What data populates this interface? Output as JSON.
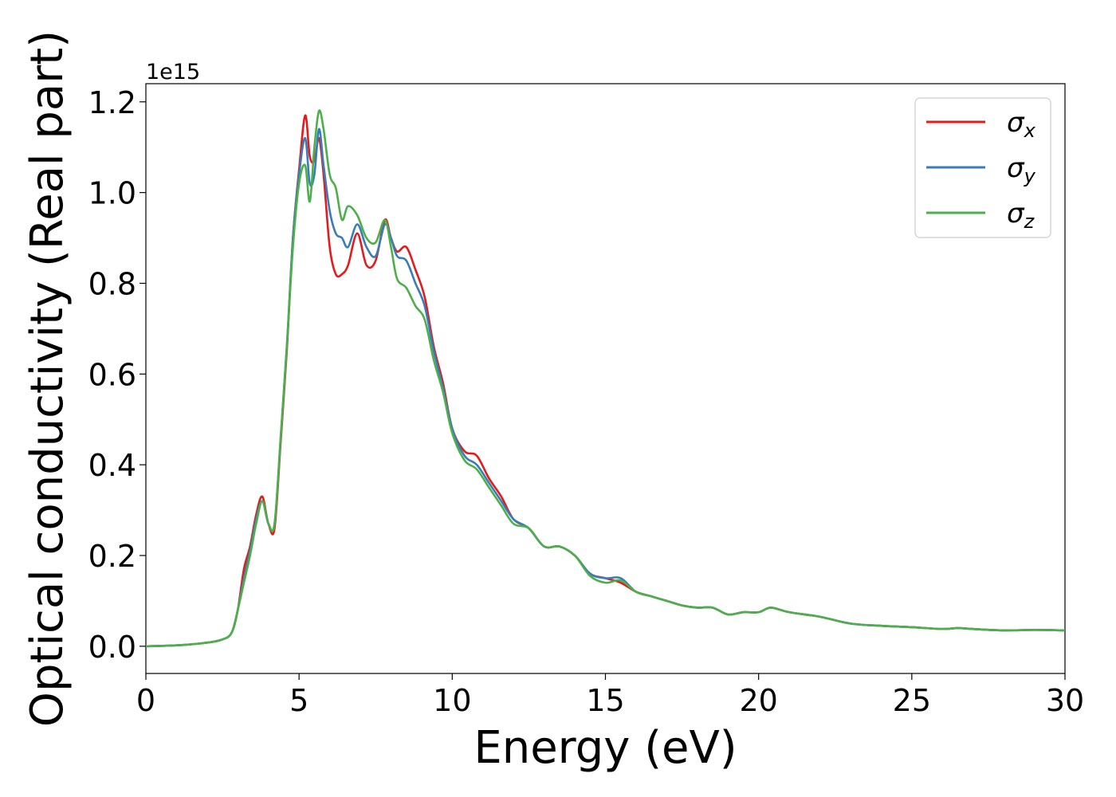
{
  "chart_data": {
    "type": "line",
    "title": "",
    "xlabel": "Energy (eV)",
    "ylabel": "Optical conductivity (Real part)",
    "y_offset_text": "1e15",
    "xlim": [
      0,
      30
    ],
    "ylim": [
      -0.06,
      1.24
    ],
    "y_scale": 1000000000000000.0,
    "xticks": [
      0,
      5,
      10,
      15,
      20,
      25,
      30
    ],
    "xtick_labels": [
      "0",
      "5",
      "10",
      "15",
      "20",
      "25",
      "30"
    ],
    "yticks": [
      0.0,
      0.2,
      0.4,
      0.6,
      0.8,
      1.0,
      1.2
    ],
    "ytick_labels": [
      "0.0",
      "0.2",
      "0.4",
      "0.6",
      "0.8",
      "1.0",
      "1.2"
    ],
    "grid": false,
    "legend_position": "top-right",
    "legend": [
      {
        "symbol": "σ",
        "subscript": "x",
        "color": "#e41a1c"
      },
      {
        "symbol": "σ",
        "subscript": "y",
        "color": "#377eb8"
      },
      {
        "symbol": "σ",
        "subscript": "z",
        "color": "#4daf4a"
      }
    ],
    "series": [
      {
        "name": "σx",
        "color": "#e41a1c",
        "x": [
          0,
          1,
          2,
          2.5,
          2.8,
          3.0,
          3.2,
          3.4,
          3.6,
          3.8,
          4.0,
          4.2,
          4.4,
          4.6,
          4.8,
          5.0,
          5.2,
          5.35,
          5.5,
          5.65,
          5.8,
          6.0,
          6.2,
          6.4,
          6.6,
          6.9,
          7.2,
          7.5,
          7.8,
          8.0,
          8.2,
          8.5,
          8.8,
          9.1,
          9.4,
          9.7,
          10.0,
          10.4,
          10.8,
          11.2,
          11.6,
          12.0,
          12.5,
          13.0,
          13.5,
          14.0,
          14.5,
          15.0,
          15.5,
          16.0,
          16.5,
          17.0,
          17.5,
          18.0,
          18.5,
          19.0,
          19.5,
          20.0,
          20.4,
          21.0,
          22.0,
          23.0,
          24.0,
          25.0,
          26.0,
          26.5,
          27.0,
          28.0,
          29.0,
          30.0
        ],
        "values": [
          0.0,
          0.002,
          0.008,
          0.015,
          0.03,
          0.08,
          0.17,
          0.22,
          0.29,
          0.33,
          0.27,
          0.26,
          0.45,
          0.65,
          0.9,
          1.05,
          1.17,
          1.08,
          1.07,
          1.12,
          1.04,
          0.88,
          0.82,
          0.82,
          0.84,
          0.91,
          0.84,
          0.85,
          0.94,
          0.9,
          0.87,
          0.88,
          0.83,
          0.77,
          0.66,
          0.58,
          0.48,
          0.43,
          0.42,
          0.37,
          0.33,
          0.28,
          0.26,
          0.22,
          0.22,
          0.2,
          0.16,
          0.15,
          0.14,
          0.12,
          0.11,
          0.1,
          0.09,
          0.085,
          0.085,
          0.07,
          0.075,
          0.075,
          0.085,
          0.075,
          0.065,
          0.05,
          0.045,
          0.042,
          0.038,
          0.04,
          0.038,
          0.035,
          0.036,
          0.035
        ]
      },
      {
        "name": "σy",
        "color": "#377eb8",
        "x": [
          0,
          1,
          2,
          2.5,
          2.8,
          3.0,
          3.2,
          3.4,
          3.6,
          3.8,
          4.0,
          4.2,
          4.4,
          4.6,
          4.8,
          5.0,
          5.2,
          5.35,
          5.5,
          5.65,
          5.8,
          6.0,
          6.2,
          6.4,
          6.6,
          6.9,
          7.2,
          7.5,
          7.8,
          8.0,
          8.2,
          8.5,
          8.8,
          9.1,
          9.4,
          9.7,
          10.0,
          10.4,
          10.8,
          11.2,
          11.6,
          12.0,
          12.5,
          13.0,
          13.5,
          14.0,
          14.5,
          15.0,
          15.5,
          16.0,
          16.5,
          17.0,
          17.5,
          18.0,
          18.5,
          19.0,
          19.5,
          20.0,
          20.4,
          21.0,
          22.0,
          23.0,
          24.0,
          25.0,
          26.0,
          26.5,
          27.0,
          28.0,
          29.0,
          30.0
        ],
        "values": [
          0.0,
          0.002,
          0.008,
          0.015,
          0.03,
          0.08,
          0.15,
          0.21,
          0.28,
          0.32,
          0.27,
          0.27,
          0.46,
          0.66,
          0.9,
          1.04,
          1.12,
          1.02,
          1.04,
          1.14,
          1.06,
          0.96,
          0.91,
          0.9,
          0.88,
          0.93,
          0.88,
          0.86,
          0.93,
          0.9,
          0.86,
          0.85,
          0.8,
          0.75,
          0.65,
          0.57,
          0.48,
          0.42,
          0.4,
          0.36,
          0.32,
          0.28,
          0.26,
          0.22,
          0.22,
          0.2,
          0.16,
          0.15,
          0.15,
          0.12,
          0.11,
          0.1,
          0.09,
          0.085,
          0.085,
          0.07,
          0.075,
          0.075,
          0.085,
          0.075,
          0.065,
          0.05,
          0.045,
          0.042,
          0.038,
          0.04,
          0.038,
          0.035,
          0.036,
          0.035
        ]
      },
      {
        "name": "σz",
        "color": "#4daf4a",
        "x": [
          0,
          1,
          2,
          2.5,
          2.8,
          3.0,
          3.2,
          3.4,
          3.6,
          3.8,
          4.0,
          4.2,
          4.4,
          4.6,
          4.8,
          5.0,
          5.2,
          5.35,
          5.5,
          5.65,
          5.8,
          6.0,
          6.2,
          6.4,
          6.6,
          6.9,
          7.2,
          7.5,
          7.8,
          8.0,
          8.2,
          8.5,
          8.8,
          9.1,
          9.4,
          9.7,
          10.0,
          10.4,
          10.8,
          11.2,
          11.6,
          12.0,
          12.5,
          13.0,
          13.5,
          14.0,
          14.5,
          15.0,
          15.5,
          16.0,
          16.5,
          17.0,
          17.5,
          18.0,
          18.5,
          19.0,
          19.5,
          20.0,
          20.4,
          21.0,
          22.0,
          23.0,
          24.0,
          25.0,
          26.0,
          26.5,
          27.0,
          28.0,
          29.0,
          30.0
        ],
        "values": [
          0.0,
          0.002,
          0.008,
          0.015,
          0.03,
          0.08,
          0.14,
          0.2,
          0.27,
          0.32,
          0.27,
          0.27,
          0.46,
          0.66,
          0.88,
          1.02,
          1.06,
          0.98,
          1.1,
          1.18,
          1.14,
          1.04,
          1.01,
          0.94,
          0.97,
          0.95,
          0.9,
          0.89,
          0.94,
          0.88,
          0.81,
          0.79,
          0.75,
          0.72,
          0.63,
          0.56,
          0.47,
          0.41,
          0.39,
          0.35,
          0.31,
          0.27,
          0.26,
          0.22,
          0.22,
          0.2,
          0.155,
          0.14,
          0.145,
          0.12,
          0.11,
          0.1,
          0.09,
          0.085,
          0.085,
          0.07,
          0.075,
          0.075,
          0.085,
          0.075,
          0.065,
          0.05,
          0.045,
          0.042,
          0.038,
          0.04,
          0.038,
          0.035,
          0.036,
          0.035
        ]
      }
    ]
  }
}
